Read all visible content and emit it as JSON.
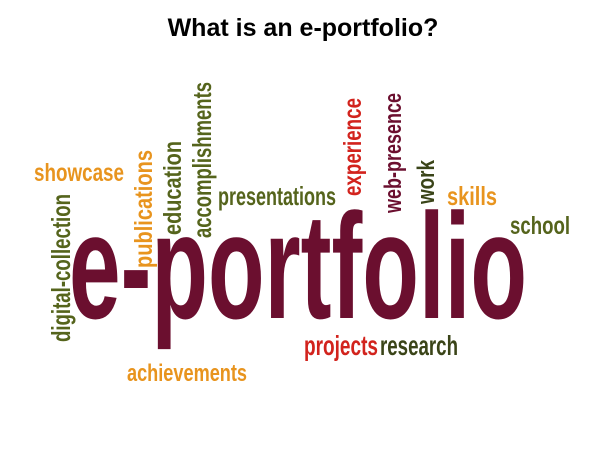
{
  "slide": {
    "title": "What is an e-portfolio?"
  },
  "cloud": {
    "main_word": "e-portfolio",
    "words": [
      "showcase",
      "publications",
      "education",
      "accomplishments",
      "presentations",
      "experience",
      "web-presence",
      "work",
      "skills",
      "school",
      "digital-collection",
      "projects",
      "research",
      "achievements"
    ]
  },
  "colors": {
    "maroon": "#6b0f2f",
    "orange": "#e8941e",
    "olive": "#55641c",
    "red": "#d2231d",
    "dark_olive": "#3a4418"
  }
}
